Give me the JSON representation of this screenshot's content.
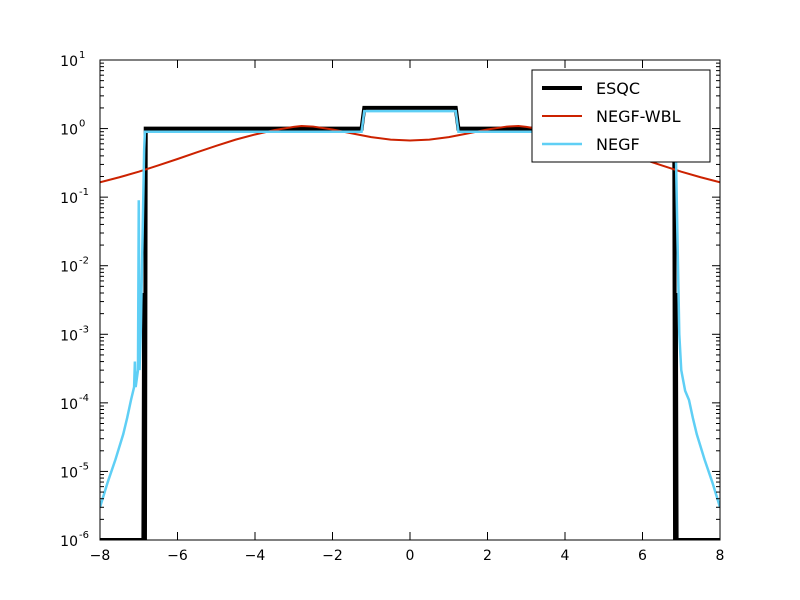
{
  "chart_data": {
    "type": "line",
    "title": "",
    "xlabel": "",
    "ylabel": "",
    "xlim": [
      -8,
      8
    ],
    "ylim": [
      1e-06,
      10
    ],
    "yscale": "log",
    "grid": false,
    "legend_position": "top-right",
    "x_ticks": [
      {
        "value": -8,
        "label": "−8"
      },
      {
        "value": -6,
        "label": "−6"
      },
      {
        "value": -4,
        "label": "−4"
      },
      {
        "value": -2,
        "label": "−2"
      },
      {
        "value": 0,
        "label": "0"
      },
      {
        "value": 2,
        "label": "2"
      },
      {
        "value": 4,
        "label": "4"
      },
      {
        "value": 6,
        "label": "6"
      },
      {
        "value": 8,
        "label": "8"
      }
    ],
    "y_ticks": [
      {
        "value": 1e-06,
        "base": "10",
        "exp": "-6"
      },
      {
        "value": 1e-05,
        "base": "10",
        "exp": "-5"
      },
      {
        "value": 0.0001,
        "base": "10",
        "exp": "-4"
      },
      {
        "value": 0.001,
        "base": "10",
        "exp": "-3"
      },
      {
        "value": 0.01,
        "base": "10",
        "exp": "-2"
      },
      {
        "value": 0.1,
        "base": "10",
        "exp": "-1"
      },
      {
        "value": 1,
        "base": "10",
        "exp": "0"
      },
      {
        "value": 10,
        "base": "10",
        "exp": "1"
      }
    ],
    "series": [
      {
        "name": "ESQC",
        "color": "#000000",
        "width": 4,
        "points": [
          [
            -8,
            1e-06
          ],
          [
            -6.88,
            1e-06
          ],
          [
            -6.86,
            0.004
          ],
          [
            -6.84,
            1e-06
          ],
          [
            -6.82,
            1.0
          ],
          [
            -1.25,
            1.0
          ],
          [
            -1.18,
            2.0
          ],
          [
            1.18,
            2.0
          ],
          [
            1.25,
            1.0
          ],
          [
            6.82,
            1.0
          ],
          [
            6.84,
            1e-06
          ],
          [
            6.86,
            0.004
          ],
          [
            6.88,
            1e-06
          ],
          [
            8,
            1e-06
          ]
        ]
      },
      {
        "name": "NEGF-WBL",
        "color": "#cc2200",
        "width": 2,
        "points": [
          [
            -8.0,
            0.165
          ],
          [
            -7.5,
            0.195
          ],
          [
            -7.0,
            0.235
          ],
          [
            -6.5,
            0.29
          ],
          [
            -6.0,
            0.36
          ],
          [
            -5.5,
            0.45
          ],
          [
            -5.0,
            0.56
          ],
          [
            -4.5,
            0.69
          ],
          [
            -4.0,
            0.82
          ],
          [
            -3.5,
            0.95
          ],
          [
            -3.0,
            1.06
          ],
          [
            -2.8,
            1.09
          ],
          [
            -2.5,
            1.07
          ],
          [
            -2.0,
            0.97
          ],
          [
            -1.5,
            0.85
          ],
          [
            -1.0,
            0.75
          ],
          [
            -0.5,
            0.69
          ],
          [
            0.0,
            0.67
          ],
          [
            0.5,
            0.69
          ],
          [
            1.0,
            0.75
          ],
          [
            1.5,
            0.85
          ],
          [
            2.0,
            0.97
          ],
          [
            2.5,
            1.07
          ],
          [
            2.8,
            1.09
          ],
          [
            3.0,
            1.06
          ],
          [
            3.5,
            0.95
          ],
          [
            4.0,
            0.82
          ],
          [
            4.5,
            0.69
          ],
          [
            5.0,
            0.56
          ],
          [
            5.5,
            0.45
          ],
          [
            6.0,
            0.36
          ],
          [
            6.5,
            0.29
          ],
          [
            7.0,
            0.235
          ],
          [
            7.5,
            0.195
          ],
          [
            8.0,
            0.165
          ]
        ]
      },
      {
        "name": "NEGF",
        "color": "#5fcff5",
        "width": 2.5,
        "points": [
          [
            -8.0,
            3e-06
          ],
          [
            -7.8,
            7e-06
          ],
          [
            -7.6,
            1.5e-05
          ],
          [
            -7.4,
            3.5e-05
          ],
          [
            -7.3,
            6e-05
          ],
          [
            -7.2,
            0.00011
          ],
          [
            -7.12,
            0.00017
          ],
          [
            -7.1,
            0.0004
          ],
          [
            -7.08,
            0.00017
          ],
          [
            -7.02,
            0.0003
          ],
          [
            -7.0,
            0.09
          ],
          [
            -6.98,
            0.0003
          ],
          [
            -6.95,
            0.001
          ],
          [
            -6.9,
            0.03
          ],
          [
            -6.86,
            0.5
          ],
          [
            -6.84,
            0.9
          ],
          [
            -6.82,
            0.9
          ],
          [
            -1.25,
            0.9
          ],
          [
            -1.18,
            1.8
          ],
          [
            1.18,
            1.8
          ],
          [
            1.25,
            0.9
          ],
          [
            6.82,
            0.9
          ],
          [
            6.84,
            0.9
          ],
          [
            6.86,
            0.5
          ],
          [
            6.9,
            0.03
          ],
          [
            6.95,
            0.001
          ],
          [
            7.0,
            0.0003
          ],
          [
            7.1,
            0.00015
          ],
          [
            7.2,
            0.00011
          ],
          [
            7.3,
            6e-05
          ],
          [
            7.4,
            3.5e-05
          ],
          [
            7.6,
            1.5e-05
          ],
          [
            7.8,
            7e-06
          ],
          [
            8.0,
            3e-06
          ]
        ]
      }
    ]
  }
}
